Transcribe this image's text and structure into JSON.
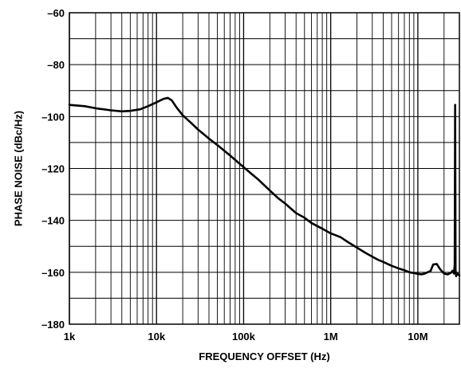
{
  "chart_data": {
    "type": "line",
    "title": "",
    "xlabel": "FREQUENCY OFFSET (Hz)",
    "ylabel": "PHASE NOISE (dBc/Hz)",
    "xscale": "log",
    "xlim": [
      1000,
      30000000
    ],
    "ylim": [
      -180,
      -60
    ],
    "x_ticks": [
      {
        "value": 1000,
        "label": "1k"
      },
      {
        "value": 10000,
        "label": "10k"
      },
      {
        "value": 100000,
        "label": "100k"
      },
      {
        "value": 1000000,
        "label": "1M"
      },
      {
        "value": 10000000,
        "label": "10M"
      }
    ],
    "y_ticks": [
      {
        "value": -60,
        "label": "–60"
      },
      {
        "value": -80,
        "label": "–80"
      },
      {
        "value": -100,
        "label": "–100"
      },
      {
        "value": -120,
        "label": "–120"
      },
      {
        "value": -140,
        "label": "–140"
      },
      {
        "value": -160,
        "label": "–160"
      },
      {
        "value": -180,
        "label": "–180"
      }
    ],
    "grid": true,
    "series": [
      {
        "color": "#000000",
        "points": [
          [
            1000,
            -95.5
          ],
          [
            1500,
            -96
          ],
          [
            2000,
            -96.8
          ],
          [
            3000,
            -97.6
          ],
          [
            4000,
            -98
          ],
          [
            5000,
            -97.8
          ],
          [
            6500,
            -97.2
          ],
          [
            8000,
            -96
          ],
          [
            10000,
            -94.5
          ],
          [
            12000,
            -93.2
          ],
          [
            13500,
            -92.8
          ],
          [
            15000,
            -93.8
          ],
          [
            17000,
            -96.5
          ],
          [
            20000,
            -99.5
          ],
          [
            25000,
            -102.5
          ],
          [
            30000,
            -105
          ],
          [
            40000,
            -108.5
          ],
          [
            50000,
            -111
          ],
          [
            70000,
            -115
          ],
          [
            100000,
            -119.5
          ],
          [
            150000,
            -124.5
          ],
          [
            200000,
            -128.5
          ],
          [
            250000,
            -131.5
          ],
          [
            300000,
            -133.5
          ],
          [
            350000,
            -135.5
          ],
          [
            400000,
            -137.2
          ],
          [
            500000,
            -139
          ],
          [
            600000,
            -141
          ],
          [
            700000,
            -142.2
          ],
          [
            800000,
            -143.2
          ],
          [
            1000000,
            -145
          ],
          [
            1300000,
            -146.5
          ],
          [
            1600000,
            -148.5
          ],
          [
            2000000,
            -150.5
          ],
          [
            2500000,
            -152.5
          ],
          [
            3000000,
            -154
          ],
          [
            3500000,
            -155.2
          ],
          [
            4000000,
            -156
          ],
          [
            5000000,
            -157.5
          ],
          [
            6000000,
            -158.5
          ],
          [
            7000000,
            -159.2
          ],
          [
            8000000,
            -160
          ],
          [
            9000000,
            -160.3
          ],
          [
            10000000,
            -160.6
          ],
          [
            11000000,
            -160.8
          ],
          [
            12000000,
            -160.5
          ],
          [
            14000000,
            -159.5
          ],
          [
            15000000,
            -157
          ],
          [
            16500000,
            -156.8
          ],
          [
            18000000,
            -158.8
          ],
          [
            20000000,
            -160.5
          ],
          [
            22000000,
            -160.8
          ],
          [
            24000000,
            -160.2
          ],
          [
            25000000,
            -159.4
          ],
          [
            26000000,
            -160.5
          ],
          [
            26500000,
            -157
          ],
          [
            26800000,
            -95.5
          ],
          [
            27100000,
            -159
          ],
          [
            27500000,
            -161.5
          ],
          [
            28500000,
            -160.5
          ],
          [
            30000000,
            -161.2
          ]
        ]
      }
    ]
  }
}
